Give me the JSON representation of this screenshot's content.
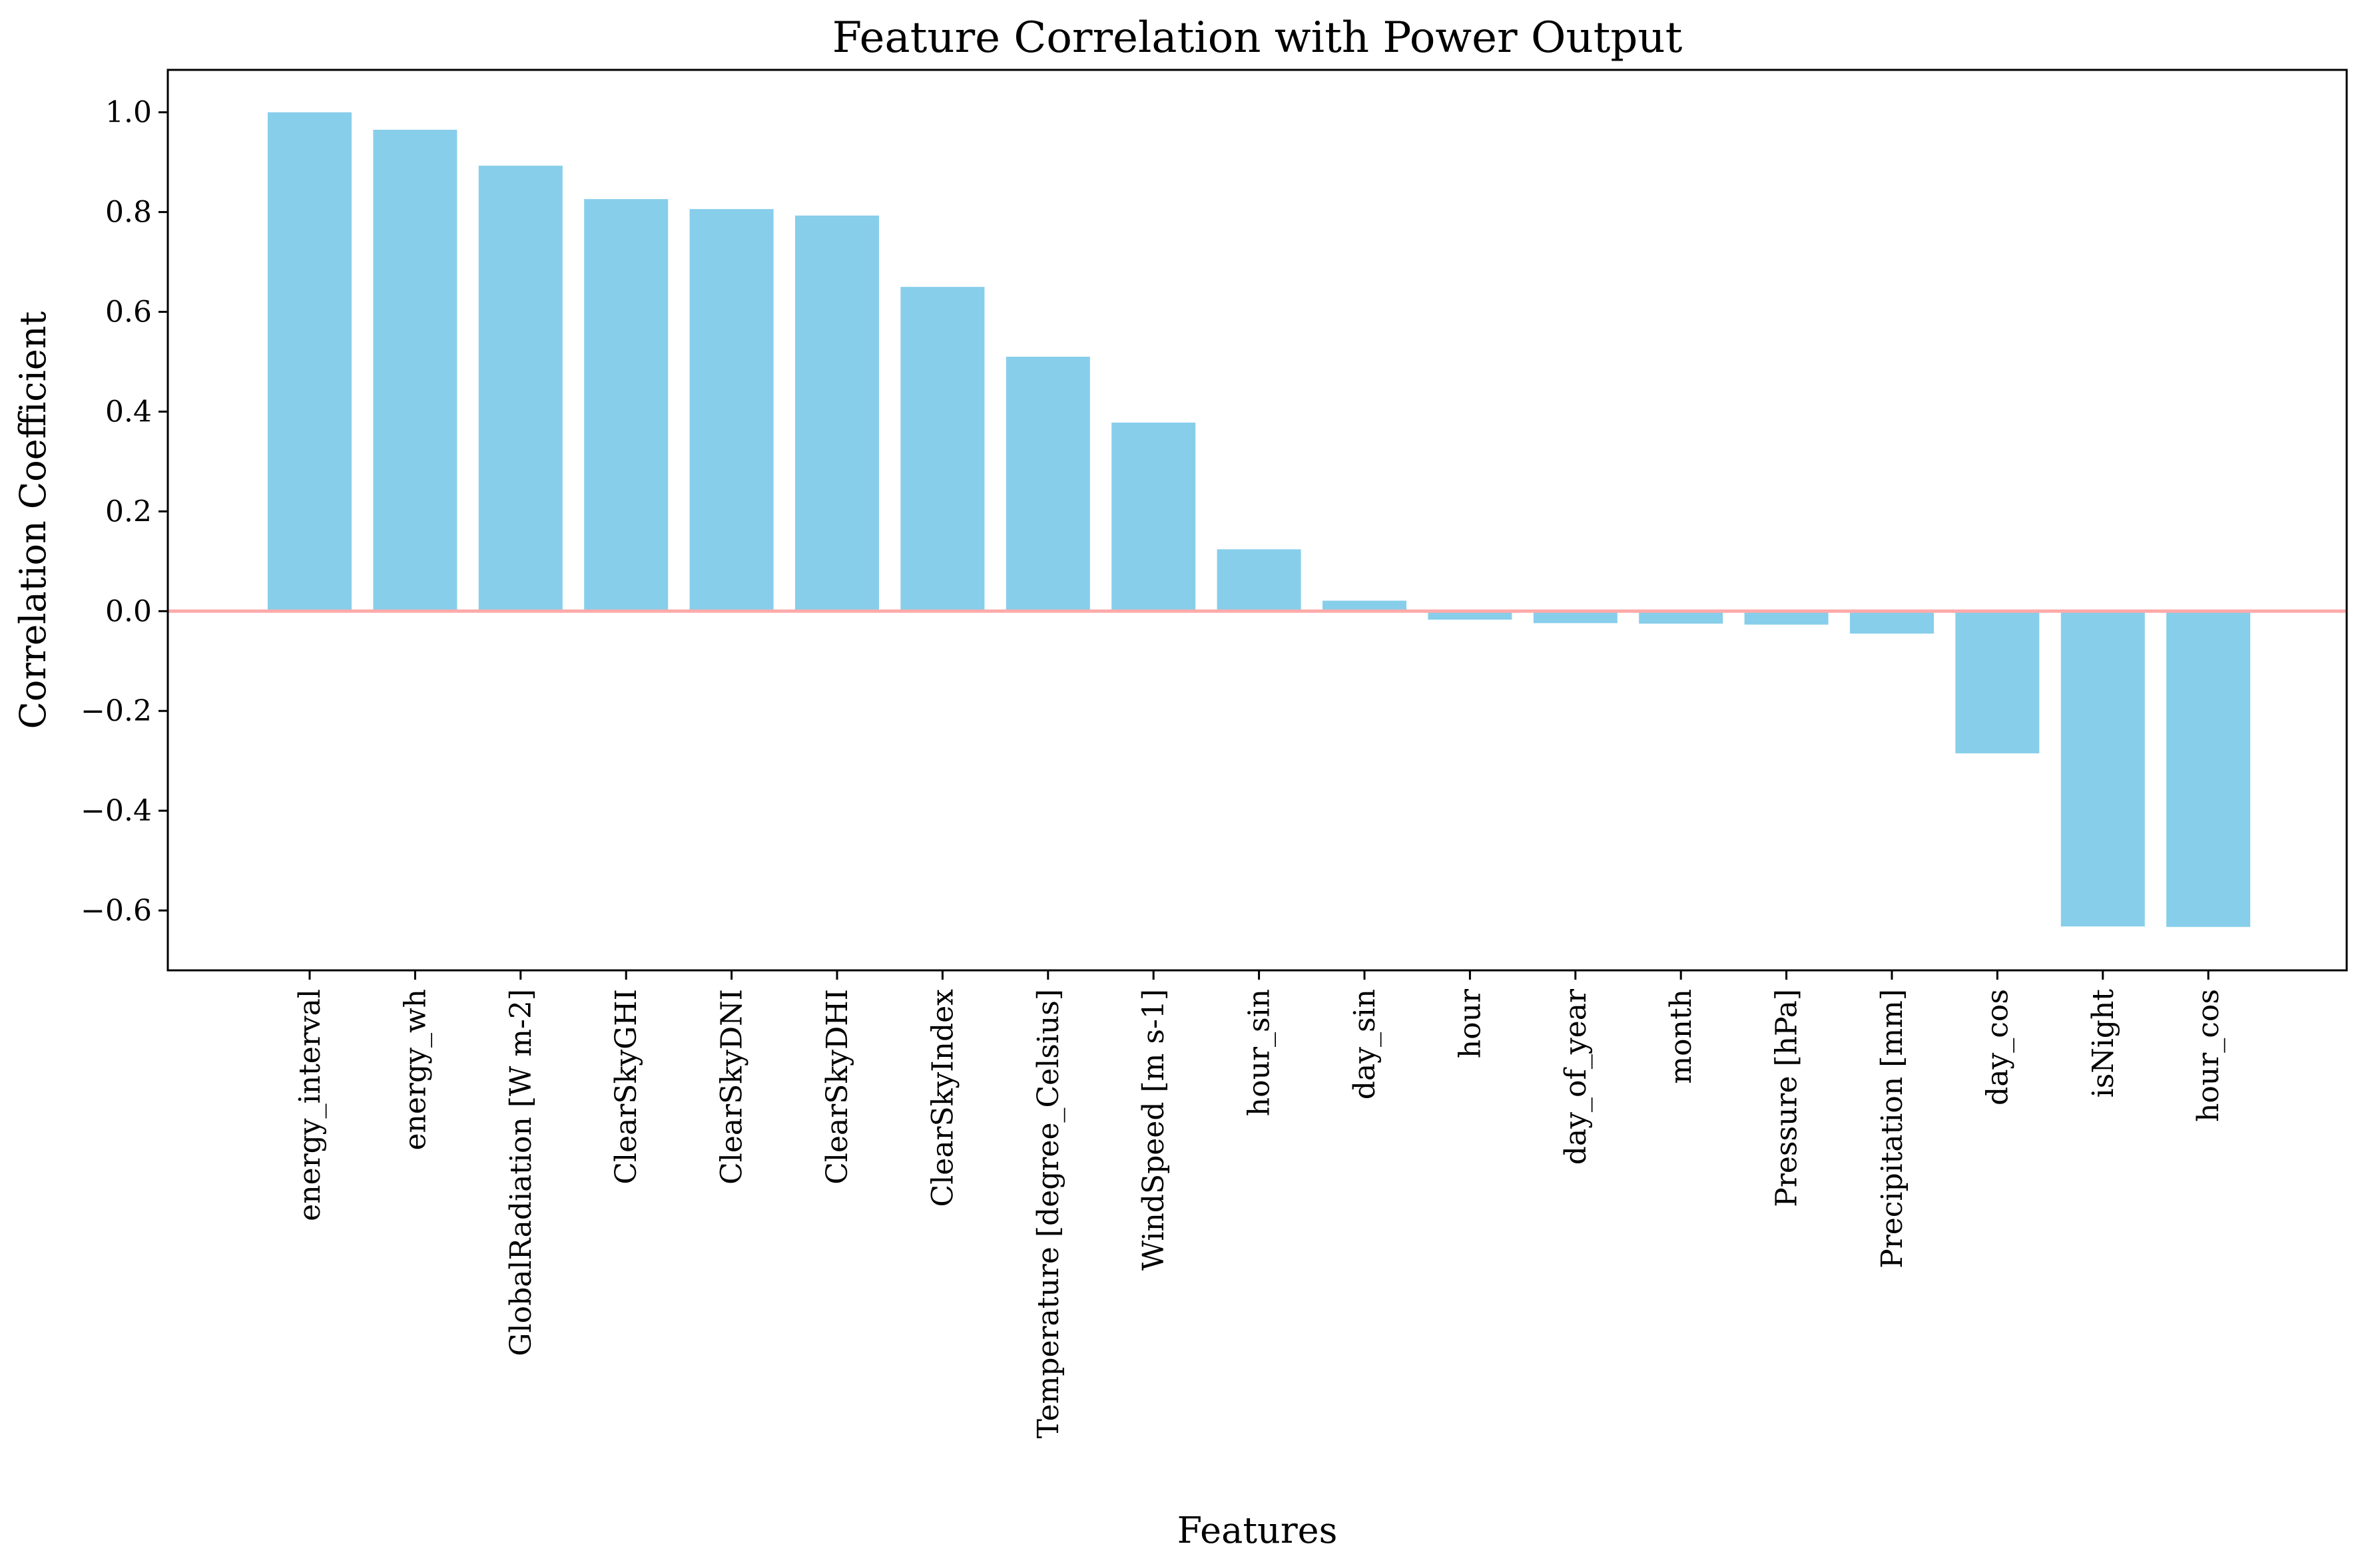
{
  "chart_data": {
    "type": "bar",
    "title": "Feature Correlation with Power Output",
    "xlabel": "Features",
    "ylabel": "Correlation Coefficient",
    "ylim": [
      -0.72,
      1.085
    ],
    "yticks": [
      -0.6,
      -0.4,
      -0.2,
      0.0,
      0.2,
      0.4,
      0.6,
      0.8,
      1.0
    ],
    "ytick_labels": [
      "−0.6",
      "−0.4",
      "−0.2",
      "0.0",
      "0.2",
      "0.4",
      "0.6",
      "0.8",
      "1.0"
    ],
    "categories": [
      "energy_interval",
      "energy_wh",
      "GlobalRadiation [W m-2]",
      "ClearSkyGHI",
      "ClearSkyDNI",
      "ClearSkyDHI",
      "ClearSkyIndex",
      "Temperature [degree_Celsius]",
      "WindSpeed [m s-1]",
      "hour_sin",
      "day_sin",
      "hour",
      "day_of_year",
      "month",
      "Pressure [hPa]",
      "Precipitation [mm]",
      "day_cos",
      "isNight",
      "hour_cos"
    ],
    "values": [
      1.0,
      0.965,
      0.893,
      0.826,
      0.806,
      0.793,
      0.65,
      0.51,
      0.378,
      0.124,
      0.021,
      -0.017,
      -0.024,
      -0.025,
      -0.027,
      -0.045,
      -0.285,
      -0.632,
      -0.633
    ],
    "bar_color": "#87CEEB",
    "reference_line": {
      "y": 0,
      "color": "#FFAAAA"
    },
    "grid": false,
    "legend": "none"
  }
}
